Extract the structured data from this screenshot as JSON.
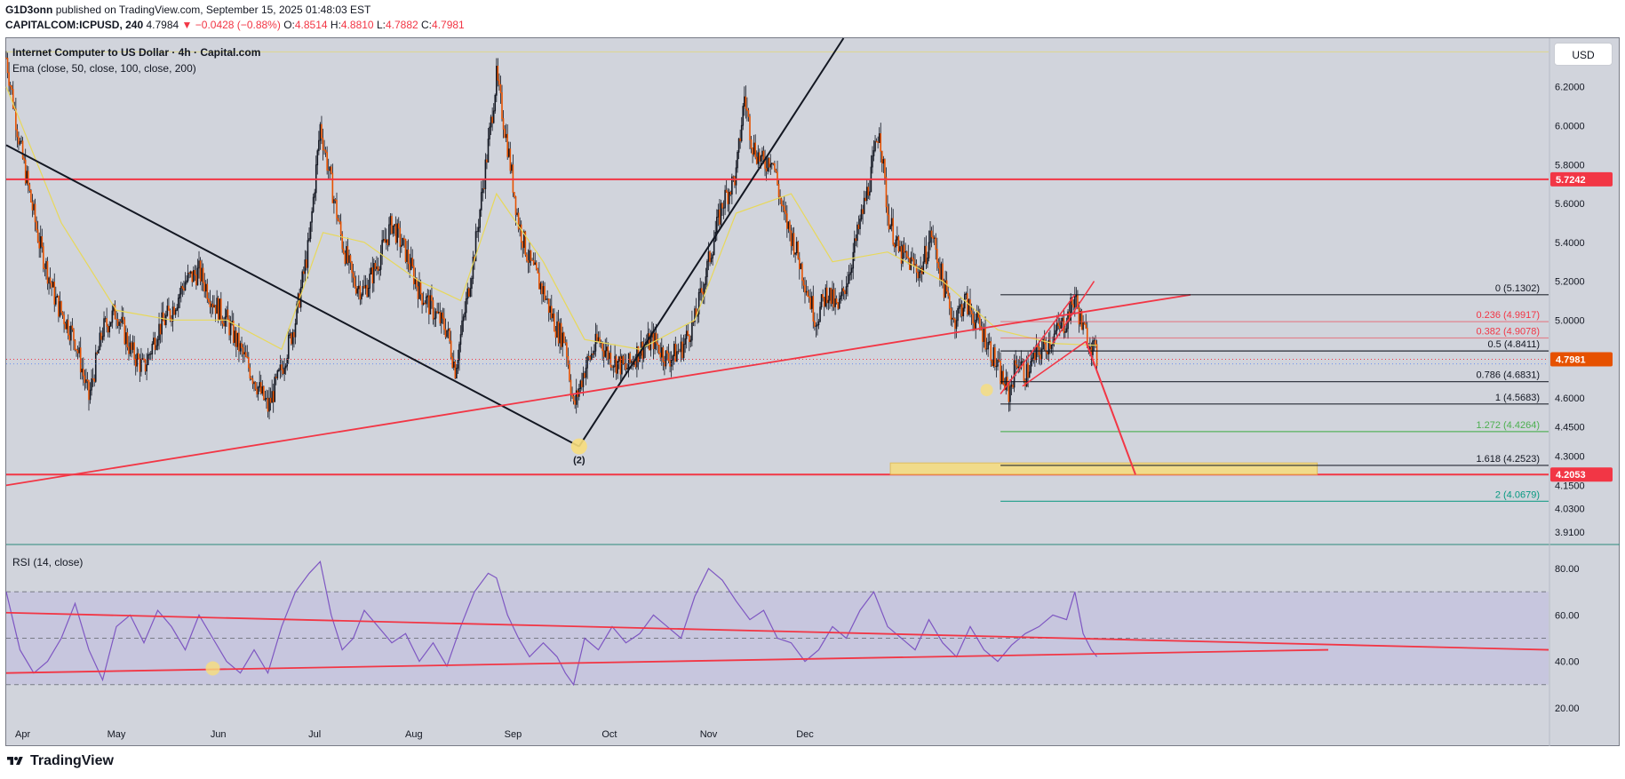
{
  "header": {
    "publisher": "G1D3onn",
    "published_text": "published on TradingView.com, September 15, 2025 01:48:03 EST",
    "symbol": "CAPITALCOM:ICPUSD, 240",
    "price": "4.7984",
    "change": "−0.0428 (−0.88%)",
    "o_label": "O:",
    "o": "4.8514",
    "h_label": "H:",
    "h": "4.8810",
    "l_label": "L:",
    "l": "4.7882",
    "c_label": "C:",
    "c": "4.7981"
  },
  "legend": {
    "title": "Internet Computer to US Dollar · 4h · Capital.com",
    "ema": "Ema (close, 50, close, 100, close, 200)",
    "rsi": "RSI (14, close)"
  },
  "currency_button": "USD",
  "footer": {
    "brand": "TradingView"
  },
  "colors": {
    "background": "#d1d4dc",
    "red_line": "#f23645",
    "ema": "#e8d85a",
    "rsi": "#7e57c2",
    "fib_zone": "#f7dd7c"
  },
  "chart_data": [
    {
      "type": "candlestick",
      "title": "Internet Computer to US Dollar · 4h · Capital.com",
      "x_ticks": [
        "Apr",
        "May",
        "Jun",
        "Jul",
        "Aug",
        "Sep",
        "Oct",
        "Nov",
        "Dec"
      ],
      "y_ticks": [
        "6.2000",
        "6.0000",
        "5.8000",
        "5.6000",
        "5.4000",
        "5.2000",
        "5.0000",
        "4.8000",
        "4.6000",
        "4.4500",
        "4.3000",
        "4.1500",
        "4.0300",
        "3.9100"
      ],
      "ylim": [
        3.85,
        6.45
      ],
      "price_path": [
        [
          0,
          6.35
        ],
        [
          5,
          5.9
        ],
        [
          12,
          5.4
        ],
        [
          18,
          5.1
        ],
        [
          25,
          4.9
        ],
        [
          30,
          4.6
        ],
        [
          35,
          4.95
        ],
        [
          40,
          5.05
        ],
        [
          45,
          4.85
        ],
        [
          50,
          4.75
        ],
        [
          55,
          4.95
        ],
        [
          60,
          5.05
        ],
        [
          65,
          5.2
        ],
        [
          70,
          5.25
        ],
        [
          75,
          5.1
        ],
        [
          80,
          5.0
        ],
        [
          85,
          4.85
        ],
        [
          90,
          4.7
        ],
        [
          95,
          4.55
        ],
        [
          100,
          4.75
        ],
        [
          105,
          5.0
        ],
        [
          110,
          5.4
        ],
        [
          114,
          6.0
        ],
        [
          118,
          5.7
        ],
        [
          122,
          5.4
        ],
        [
          126,
          5.2
        ],
        [
          130,
          5.15
        ],
        [
          135,
          5.3
        ],
        [
          140,
          5.5
        ],
        [
          145,
          5.35
        ],
        [
          150,
          5.15
        ],
        [
          155,
          5.05
        ],
        [
          160,
          4.95
        ],
        [
          163,
          4.75
        ],
        [
          166,
          5.0
        ],
        [
          170,
          5.35
        ],
        [
          175,
          5.9
        ],
        [
          178,
          6.25
        ],
        [
          182,
          5.9
        ],
        [
          186,
          5.5
        ],
        [
          190,
          5.3
        ],
        [
          195,
          5.15
        ],
        [
          200,
          4.95
        ],
        [
          203,
          4.9
        ],
        [
          206,
          4.55
        ],
        [
          210,
          4.75
        ],
        [
          215,
          4.9
        ],
        [
          220,
          4.8
        ],
        [
          225,
          4.75
        ],
        [
          230,
          4.85
        ],
        [
          235,
          4.9
        ],
        [
          240,
          4.8
        ],
        [
          245,
          4.85
        ],
        [
          250,
          5.0
        ],
        [
          255,
          5.3
        ],
        [
          260,
          5.6
        ],
        [
          265,
          5.75
        ],
        [
          268,
          6.15
        ],
        [
          271,
          5.9
        ],
        [
          275,
          5.8
        ],
        [
          278,
          5.85
        ],
        [
          282,
          5.55
        ],
        [
          286,
          5.4
        ],
        [
          290,
          5.2
        ],
        [
          294,
          5.0
        ],
        [
          298,
          5.15
        ],
        [
          302,
          5.05
        ],
        [
          306,
          5.25
        ],
        [
          310,
          5.5
        ],
        [
          314,
          5.75
        ],
        [
          317,
          6.0
        ],
        [
          320,
          5.55
        ],
        [
          324,
          5.35
        ],
        [
          328,
          5.3
        ],
        [
          332,
          5.25
        ],
        [
          336,
          5.45
        ],
        [
          340,
          5.2
        ],
        [
          344,
          5.0
        ],
        [
          348,
          5.1
        ],
        [
          352,
          5.0
        ],
        [
          356,
          4.9
        ],
        [
          360,
          4.75
        ],
        [
          364,
          4.62
        ],
        [
          367,
          4.8
        ],
        [
          370,
          4.72
        ],
        [
          374,
          4.82
        ],
        [
          378,
          4.88
        ],
        [
          382,
          4.95
        ],
        [
          385,
          5.0
        ],
        [
          388,
          5.12
        ],
        [
          391,
          4.95
        ],
        [
          394,
          4.88
        ],
        [
          396,
          4.8
        ]
      ],
      "ema_path": [
        [
          0,
          6.2
        ],
        [
          20,
          5.5
        ],
        [
          40,
          5.05
        ],
        [
          60,
          5.0
        ],
        [
          80,
          5.0
        ],
        [
          100,
          4.85
        ],
        [
          115,
          5.45
        ],
        [
          130,
          5.4
        ],
        [
          150,
          5.2
        ],
        [
          165,
          5.1
        ],
        [
          178,
          5.65
        ],
        [
          195,
          5.3
        ],
        [
          210,
          4.9
        ],
        [
          230,
          4.85
        ],
        [
          250,
          5.0
        ],
        [
          265,
          5.55
        ],
        [
          285,
          5.65
        ],
        [
          300,
          5.3
        ],
        [
          320,
          5.35
        ],
        [
          340,
          5.2
        ],
        [
          360,
          4.95
        ],
        [
          380,
          4.88
        ],
        [
          396,
          4.87
        ]
      ],
      "horizontal_levels": [
        {
          "price": 5.7242,
          "label": "5.7242"
        },
        {
          "price": 4.2053,
          "label": "4.2053"
        }
      ],
      "last_price_label": "4.7981",
      "fibonacci": [
        {
          "ratio": "0",
          "price": 5.1302,
          "label": "0 (5.1302)"
        },
        {
          "ratio": "0.236",
          "price": 4.9917,
          "label": "0.236 (4.9917)"
        },
        {
          "ratio": "0.382",
          "price": 4.9078,
          "label": "0.382 (4.9078)"
        },
        {
          "ratio": "0.5",
          "price": 4.8411,
          "label": "0.5 (4.8411)"
        },
        {
          "ratio": "0.786",
          "price": 4.6831,
          "label": "0.786 (4.6831)"
        },
        {
          "ratio": "1",
          "price": 4.5683,
          "label": "1 (4.5683)"
        },
        {
          "ratio": "1.272",
          "price": 4.4264,
          "label": "1.272 (4.4264)"
        },
        {
          "ratio": "1.618",
          "price": 4.2523,
          "label": "1.618 (4.2523)"
        },
        {
          "ratio": "2",
          "price": 4.0679,
          "label": "2 (4.0679)"
        }
      ],
      "wave_label": "(2)"
    },
    {
      "type": "line",
      "title": "RSI (14, close)",
      "y_ticks": [
        "80.00",
        "60.00",
        "40.00",
        "20.00"
      ],
      "ylim": [
        10,
        90
      ],
      "bands": [
        30,
        50,
        70
      ],
      "rsi_path": [
        [
          0,
          70
        ],
        [
          5,
          45
        ],
        [
          10,
          35
        ],
        [
          15,
          40
        ],
        [
          20,
          50
        ],
        [
          25,
          65
        ],
        [
          30,
          45
        ],
        [
          35,
          32
        ],
        [
          40,
          55
        ],
        [
          45,
          60
        ],
        [
          50,
          48
        ],
        [
          55,
          62
        ],
        [
          60,
          55
        ],
        [
          65,
          45
        ],
        [
          70,
          60
        ],
        [
          75,
          50
        ],
        [
          80,
          40
        ],
        [
          85,
          35
        ],
        [
          90,
          45
        ],
        [
          95,
          35
        ],
        [
          100,
          55
        ],
        [
          105,
          70
        ],
        [
          110,
          78
        ],
        [
          114,
          83
        ],
        [
          118,
          60
        ],
        [
          122,
          45
        ],
        [
          126,
          50
        ],
        [
          130,
          62
        ],
        [
          135,
          55
        ],
        [
          140,
          48
        ],
        [
          145,
          52
        ],
        [
          150,
          40
        ],
        [
          155,
          48
        ],
        [
          160,
          38
        ],
        [
          165,
          55
        ],
        [
          170,
          70
        ],
        [
          175,
          78
        ],
        [
          178,
          76
        ],
        [
          182,
          60
        ],
        [
          186,
          50
        ],
        [
          190,
          42
        ],
        [
          195,
          48
        ],
        [
          200,
          42
        ],
        [
          203,
          35
        ],
        [
          206,
          30
        ],
        [
          210,
          50
        ],
        [
          215,
          45
        ],
        [
          220,
          55
        ],
        [
          225,
          48
        ],
        [
          230,
          52
        ],
        [
          235,
          60
        ],
        [
          240,
          55
        ],
        [
          245,
          50
        ],
        [
          250,
          68
        ],
        [
          255,
          80
        ],
        [
          260,
          75
        ],
        [
          265,
          66
        ],
        [
          270,
          58
        ],
        [
          275,
          62
        ],
        [
          280,
          50
        ],
        [
          285,
          48
        ],
        [
          290,
          40
        ],
        [
          295,
          45
        ],
        [
          300,
          55
        ],
        [
          305,
          50
        ],
        [
          310,
          62
        ],
        [
          315,
          70
        ],
        [
          320,
          55
        ],
        [
          325,
          50
        ],
        [
          330,
          45
        ],
        [
          335,
          58
        ],
        [
          340,
          48
        ],
        [
          345,
          42
        ],
        [
          350,
          55
        ],
        [
          355,
          45
        ],
        [
          360,
          40
        ],
        [
          365,
          47
        ],
        [
          370,
          52
        ],
        [
          375,
          55
        ],
        [
          380,
          60
        ],
        [
          385,
          58
        ],
        [
          388,
          70
        ],
        [
          391,
          52
        ],
        [
          394,
          45
        ],
        [
          396,
          42
        ]
      ]
    }
  ]
}
